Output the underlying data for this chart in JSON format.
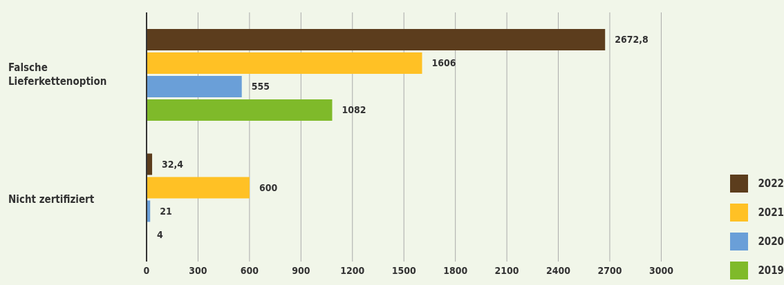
{
  "chart_data": {
    "type": "bar",
    "orientation": "horizontal",
    "categories": [
      "Falsche Lieferkettenoption",
      "Nicht zertifiziert"
    ],
    "series": [
      {
        "name": "2022",
        "color": "#5c3d1d",
        "values": [
          2672.8,
          32.4
        ],
        "value_labels": [
          "2672,8",
          "32,4"
        ]
      },
      {
        "name": "2021",
        "color": "#ffc125",
        "values": [
          1606,
          600
        ],
        "value_labels": [
          "1606",
          "600"
        ]
      },
      {
        "name": "2020",
        "color": "#6a9fd8",
        "values": [
          555,
          21
        ],
        "value_labels": [
          "555",
          "21"
        ]
      },
      {
        "name": "2019",
        "color": "#7fba2a",
        "values": [
          1082,
          4
        ],
        "value_labels": [
          "1082",
          "4"
        ]
      }
    ],
    "xlim": [
      0,
      3000
    ],
    "xticks": [
      0,
      300,
      600,
      900,
      1200,
      1500,
      1800,
      2100,
      2400,
      2700,
      3000
    ],
    "grid": "x",
    "legend": "bottom right"
  }
}
